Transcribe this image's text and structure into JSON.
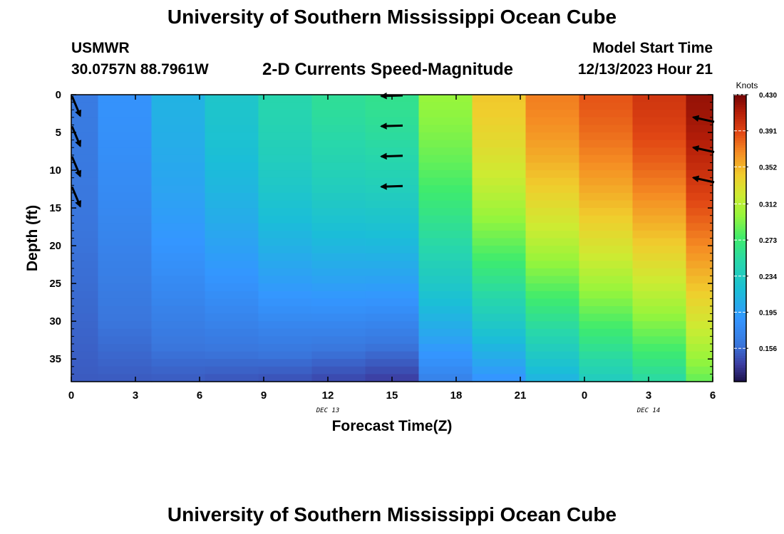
{
  "header": {
    "title": "University of Southern Mississippi Ocean Cube",
    "station": "USMWR",
    "coords": "30.0757N  88.7961W",
    "plot_title": "2-D Currents Speed-Magnitude",
    "model_start_label": "Model Start Time",
    "model_start_value": "12/13/2023 Hour 21"
  },
  "footer": {
    "title": "University of Southern Mississippi Ocean Cube"
  },
  "chart_data": {
    "type": "heatmap",
    "xlabel": "Forecast Time(Z)",
    "ylabel": "Depth (ft)",
    "x_ticks": [
      {
        "h": 0,
        "label": "0"
      },
      {
        "h": 3,
        "label": "3"
      },
      {
        "h": 6,
        "label": "6"
      },
      {
        "h": 9,
        "label": "9"
      },
      {
        "h": 12,
        "label": "12"
      },
      {
        "h": 15,
        "label": "15"
      },
      {
        "h": 18,
        "label": "18"
      },
      {
        "h": 21,
        "label": "21"
      },
      {
        "h": 24,
        "label": "0"
      },
      {
        "h": 27,
        "label": "3"
      },
      {
        "h": 30,
        "label": "6"
      }
    ],
    "date_labels": [
      {
        "h": 12,
        "label": "DEC 13"
      },
      {
        "h": 27,
        "label": "DEC 14"
      }
    ],
    "xlim": [
      0,
      30
    ],
    "ylim": [
      0,
      38
    ],
    "y_ticks": [
      0,
      5,
      10,
      15,
      20,
      25,
      30,
      35
    ],
    "colorbar": {
      "label": "Knots",
      "range": [
        0.12,
        0.43
      ],
      "ticks": [
        0.43,
        0.391,
        0.352,
        0.312,
        0.273,
        0.234,
        0.195,
        0.156
      ],
      "tick_labels": [
        "0.430",
        "0.391",
        "0.352",
        "0.312",
        "0.273",
        "0.234",
        "0.195",
        "0.156"
      ]
    },
    "columns": [
      {
        "h_start": 0,
        "h_end": 1.25,
        "surface": 0.165,
        "bottom": 0.15
      },
      {
        "h_start": 1.25,
        "h_end": 3.75,
        "surface": 0.185,
        "bottom": 0.15
      },
      {
        "h_start": 3.75,
        "h_end": 6.25,
        "surface": 0.21,
        "bottom": 0.15
      },
      {
        "h_start": 6.25,
        "h_end": 8.75,
        "surface": 0.228,
        "bottom": 0.148
      },
      {
        "h_start": 8.75,
        "h_end": 11.25,
        "surface": 0.248,
        "bottom": 0.146
      },
      {
        "h_start": 11.25,
        "h_end": 13.75,
        "surface": 0.258,
        "bottom": 0.142
      },
      {
        "h_start": 13.75,
        "h_end": 16.25,
        "surface": 0.262,
        "bottom": 0.138
      },
      {
        "h_start": 16.25,
        "h_end": 18.75,
        "surface": 0.3,
        "bottom": 0.17
      },
      {
        "h_start": 18.75,
        "h_end": 21.25,
        "surface": 0.345,
        "bottom": 0.185
      },
      {
        "h_start": 21.25,
        "h_end": 23.75,
        "surface": 0.372,
        "bottom": 0.21
      },
      {
        "h_start": 23.75,
        "h_end": 26.25,
        "surface": 0.385,
        "bottom": 0.235
      },
      {
        "h_start": 26.25,
        "h_end": 28.75,
        "surface": 0.398,
        "bottom": 0.252
      },
      {
        "h_start": 28.75,
        "h_end": 30,
        "surface": 0.42,
        "bottom": 0.285
      }
    ],
    "vectors": [
      {
        "h": 0,
        "depth": 0,
        "dir": "SE"
      },
      {
        "h": 0,
        "depth": 4,
        "dir": "SE"
      },
      {
        "h": 0,
        "depth": 8,
        "dir": "SE"
      },
      {
        "h": 0,
        "depth": 12,
        "dir": "SE"
      },
      {
        "h": 15,
        "depth": 0,
        "dir": "W"
      },
      {
        "h": 15,
        "depth": 4,
        "dir": "W"
      },
      {
        "h": 15,
        "depth": 8,
        "dir": "W"
      },
      {
        "h": 15,
        "depth": 12,
        "dir": "W"
      },
      {
        "h": 30,
        "depth": 3.5,
        "dir": "WNW"
      },
      {
        "h": 30,
        "depth": 7.5,
        "dir": "WNW"
      },
      {
        "h": 30,
        "depth": 11.5,
        "dir": "WNW"
      }
    ]
  }
}
